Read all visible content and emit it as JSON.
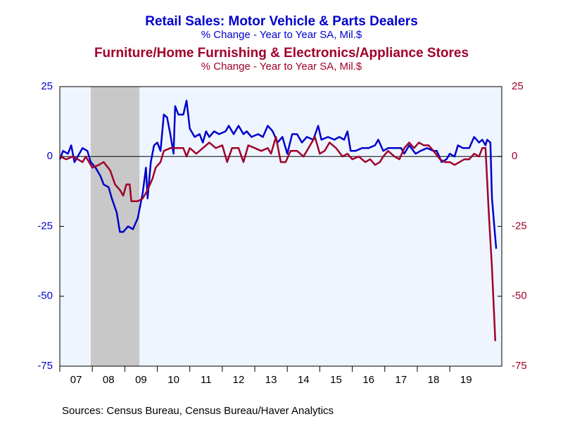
{
  "chart_data": {
    "type": "line",
    "title": "Retail Sales: Motor Vehicle & Parts Dealers",
    "subtitle": "% Change - Year to Year    SA, Mil.$",
    "title2": "Furniture/Home Furnishing & Electronics/Appliance Stores",
    "subtitle2": "% Change - Year to Year    SA, Mil.$",
    "source": "Sources:  Census Bureau, Census Bureau/Haver Analytics",
    "xlim": [
      7,
      20.6
    ],
    "xticks": [
      {
        "value": 7.5,
        "label": "07"
      },
      {
        "value": 8.5,
        "label": "08"
      },
      {
        "value": 9.5,
        "label": "09"
      },
      {
        "value": 10.5,
        "label": "10"
      },
      {
        "value": 11.5,
        "label": "11"
      },
      {
        "value": 12.5,
        "label": "12"
      },
      {
        "value": 13.5,
        "label": "13"
      },
      {
        "value": 14.5,
        "label": "14"
      },
      {
        "value": 15.5,
        "label": "15"
      },
      {
        "value": 16.5,
        "label": "16"
      },
      {
        "value": 17.5,
        "label": "17"
      },
      {
        "value": 18.5,
        "label": "18"
      },
      {
        "value": 19.5,
        "label": "19"
      }
    ],
    "ylim": [
      -75,
      25
    ],
    "yticks": [
      -75,
      -50,
      -25,
      0,
      25
    ],
    "y2lim": [
      -75,
      25
    ],
    "y2ticks": [
      -75,
      -50,
      -25,
      0,
      25
    ],
    "shaded_ranges": [
      [
        7.95,
        9.45
      ]
    ],
    "series": [
      {
        "name": "Retail Sales: Motor Vehicle & Parts Dealers",
        "color": "#0000cc",
        "x": [
          7.0,
          7.1,
          7.25,
          7.35,
          7.45,
          7.6,
          7.7,
          7.85,
          7.95,
          8.1,
          8.25,
          8.35,
          8.5,
          8.6,
          8.75,
          8.85,
          8.95,
          9.1,
          9.25,
          9.4,
          9.55,
          9.65,
          9.7,
          9.8,
          9.9,
          10.0,
          10.1,
          10.2,
          10.3,
          10.4,
          10.5,
          10.55,
          10.65,
          10.8,
          10.9,
          11.0,
          11.15,
          11.3,
          11.4,
          11.5,
          11.6,
          11.75,
          11.9,
          12.1,
          12.2,
          12.35,
          12.5,
          12.65,
          12.75,
          12.9,
          13.1,
          13.25,
          13.4,
          13.55,
          13.7,
          13.85,
          14.0,
          14.15,
          14.3,
          14.45,
          14.6,
          14.8,
          14.95,
          15.05,
          15.25,
          15.45,
          15.6,
          15.75,
          15.85,
          15.95,
          16.1,
          16.3,
          16.5,
          16.7,
          16.8,
          16.95,
          17.1,
          17.3,
          17.5,
          17.6,
          17.75,
          17.95,
          18.1,
          18.3,
          18.5,
          18.6,
          18.75,
          18.9,
          19.0,
          19.15,
          19.25,
          19.4,
          19.6,
          19.75,
          19.9,
          20.0,
          20.1,
          20.15,
          20.25,
          20.3,
          20.37,
          20.43
        ],
        "values": [
          -1,
          2,
          1,
          4,
          -2,
          1,
          3,
          2,
          -2,
          -4,
          -7,
          -10,
          -11,
          -15,
          -20,
          -27,
          -27,
          -25,
          -26,
          -22,
          -13,
          -4,
          -15,
          -2,
          4,
          5,
          2,
          15,
          14,
          8,
          1,
          18,
          15,
          15,
          20,
          10,
          7,
          8,
          5,
          9,
          7,
          9,
          8,
          9,
          11,
          8,
          11,
          8,
          9,
          7,
          8,
          7,
          11,
          9,
          5,
          7,
          1,
          8,
          8,
          5,
          7,
          6,
          11,
          6,
          7,
          6,
          7,
          6,
          9,
          2,
          2,
          3,
          3,
          4,
          6,
          2,
          3,
          3,
          3,
          1,
          4,
          1,
          2,
          3,
          2,
          2,
          -2,
          -1,
          1,
          0,
          4,
          3,
          3,
          7,
          5,
          6,
          4,
          6,
          5,
          -15,
          -25,
          -33
        ]
      },
      {
        "name": "Furniture/Home Furnishing & Electronics/Appliance Stores",
        "color": "#a0002a",
        "x": [
          7.0,
          7.2,
          7.4,
          7.55,
          7.7,
          7.8,
          7.9,
          8.0,
          8.2,
          8.35,
          8.55,
          8.7,
          8.85,
          8.95,
          9.05,
          9.15,
          9.2,
          9.4,
          9.55,
          9.7,
          9.85,
          9.95,
          10.1,
          10.2,
          10.4,
          10.6,
          10.8,
          10.9,
          11.0,
          11.2,
          11.4,
          11.6,
          11.8,
          12.0,
          12.15,
          12.3,
          12.5,
          12.65,
          12.8,
          13.0,
          13.2,
          13.4,
          13.5,
          13.65,
          13.8,
          13.95,
          14.1,
          14.3,
          14.5,
          14.7,
          14.85,
          15.0,
          15.15,
          15.3,
          15.5,
          15.7,
          15.85,
          16.0,
          16.2,
          16.4,
          16.55,
          16.7,
          16.85,
          16.95,
          17.1,
          17.3,
          17.45,
          17.6,
          17.75,
          17.9,
          18.05,
          18.2,
          18.35,
          18.5,
          18.7,
          18.85,
          19.0,
          19.15,
          19.3,
          19.45,
          19.6,
          19.75,
          19.9,
          20.0,
          20.1,
          20.2,
          20.3,
          20.4
        ],
        "values": [
          0,
          -1,
          0,
          -1,
          -2,
          0,
          -2,
          -4,
          -3,
          -2,
          -5,
          -10,
          -12,
          -14,
          -10,
          -10,
          -16,
          -16,
          -15,
          -12,
          -8,
          -4,
          -2,
          2,
          3,
          3,
          3,
          0,
          3,
          1,
          3,
          5,
          3,
          4,
          -2,
          3,
          3,
          -2,
          4,
          3,
          2,
          3,
          1,
          7,
          -2,
          -2,
          2,
          2,
          0,
          4,
          7,
          1,
          2,
          5,
          3,
          0,
          1,
          -1,
          0,
          -2,
          -1,
          -3,
          -2,
          0,
          2,
          0,
          -1,
          3,
          5,
          3,
          5,
          4,
          4,
          2,
          -1,
          -2,
          -2,
          -3,
          -2,
          -1,
          -1,
          1,
          0,
          3,
          3,
          -20,
          -40,
          -66
        ]
      }
    ]
  }
}
